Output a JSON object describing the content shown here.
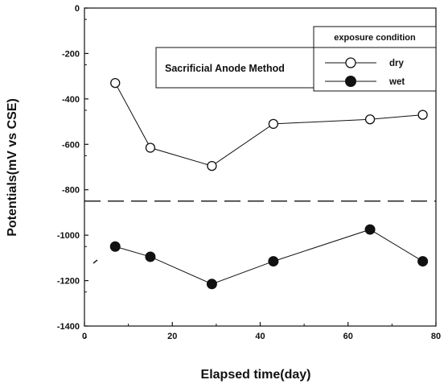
{
  "chart_data": {
    "type": "line",
    "title": "",
    "xlabel": "Elapsed time(day)",
    "ylabel": "Potentials(mV vs CSE)",
    "xlim": [
      0,
      80
    ],
    "ylim": [
      -1400,
      0
    ],
    "xticks": [
      0,
      20,
      40,
      60,
      80
    ],
    "yticks": [
      0,
      -200,
      -400,
      -600,
      -800,
      -1000,
      -1200,
      -1400
    ],
    "grid": false,
    "legend": {
      "title": "exposure condition",
      "placement": "top-right"
    },
    "annotation": "Sacrificial Anode Method",
    "reference_line": {
      "y": -850,
      "style": "dashed"
    },
    "series": [
      {
        "name": "dry",
        "marker": "open-circle",
        "x": [
          7,
          15,
          29,
          43,
          65,
          77
        ],
        "y": [
          -330,
          -615,
          -695,
          -510,
          -490,
          -470
        ]
      },
      {
        "name": "wet",
        "marker": "filled-circle",
        "x": [
          7,
          15,
          29,
          43,
          65,
          77
        ],
        "y": [
          -1050,
          -1095,
          -1215,
          -1115,
          -975,
          -1115
        ]
      }
    ]
  }
}
